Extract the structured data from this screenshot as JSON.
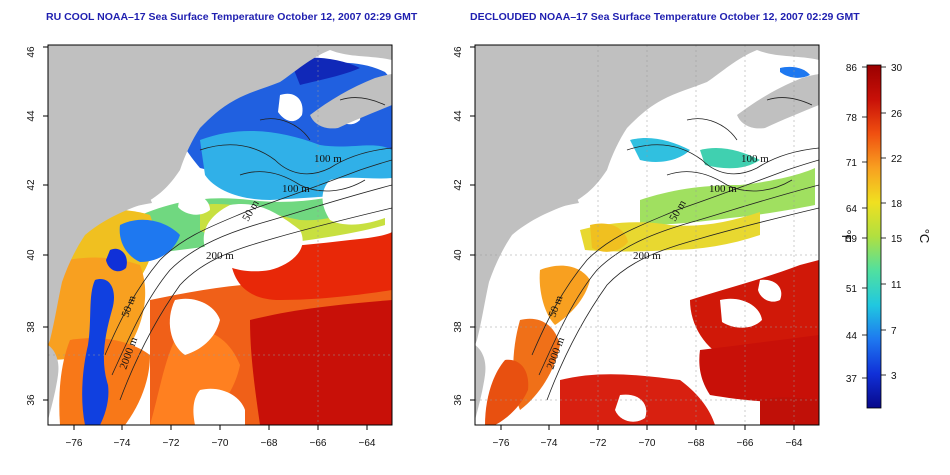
{
  "panels": [
    {
      "title": "RU COOL NOAA–17 Sea Surface Temperature October 12, 2007 02:29 GMT"
    },
    {
      "title": "DECLOUDED NOAA–17 Sea Surface Temperature October 12, 2007 02:29 GMT"
    }
  ],
  "axes": {
    "x_ticks": [
      "−76",
      "−74",
      "−72",
      "−70",
      "−68",
      "−66",
      "−64"
    ],
    "y_ticks": [
      "36",
      "38",
      "40",
      "42",
      "44",
      "46"
    ]
  },
  "contour_labels": {
    "left": [
      "100 m",
      "100 m",
      "50 m",
      "200 m",
      "50 m",
      "2000 m"
    ],
    "right": [
      "100 m",
      "100 m",
      "50 m",
      "200 m",
      "50 m",
      "2000 m"
    ]
  },
  "colorbar": {
    "f_label": "°F",
    "c_label": "°C",
    "f_ticks": [
      "86",
      "78",
      "71",
      "64",
      "59",
      "51",
      "44",
      "37"
    ],
    "c_ticks": [
      "30",
      "26",
      "22",
      "18",
      "15",
      "11",
      "7",
      "3"
    ],
    "colors": [
      "#08088a",
      "#1030d8",
      "#1e78f0",
      "#20c8e0",
      "#50e0a0",
      "#b0e040",
      "#f0e020",
      "#f8a020",
      "#f05010",
      "#c81008",
      "#9a0000"
    ]
  },
  "colors": {
    "land": "#c0c0c0",
    "title": "#1f1fb0"
  }
}
